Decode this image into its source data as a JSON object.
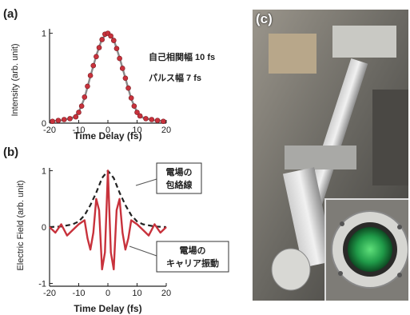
{
  "figure": {
    "panel_a": {
      "label": "(a)",
      "ylabel": "Intensity (arb. unit)",
      "xlabel": "Time Delay (fs)",
      "annotation_line1": "自己相関幅 10 fs",
      "annotation_line2": "パルス幅 7 fs"
    },
    "panel_b": {
      "label": "(b)",
      "ylabel": "Electric Field (arb. unit)",
      "xlabel": "Time Delay (fs)",
      "callout_envelope": [
        "電場の",
        "包絡線"
      ],
      "callout_carrier": [
        "電場の",
        "キャリア振動"
      ]
    },
    "panel_c": {
      "label": "(c)"
    }
  },
  "chart_data": [
    {
      "type": "line",
      "title": "",
      "xlabel": "Time Delay (fs)",
      "ylabel": "Intensity (arb. unit)",
      "xlim": [
        -20,
        20
      ],
      "ylim": [
        0,
        1.05
      ],
      "xticks": [
        "-20",
        "-10",
        "0",
        "10",
        "20"
      ],
      "yticks": [
        "0",
        "1"
      ],
      "series": [
        {
          "style": "markers",
          "color": "#c8323c",
          "x": [
            -19,
            -17,
            -15,
            -13,
            -11,
            -10,
            -9,
            -8,
            -7,
            -6,
            -5,
            -4,
            -3,
            -2,
            -1,
            0,
            1,
            2,
            3,
            4,
            5,
            6,
            7,
            8,
            9,
            10,
            11,
            13,
            15,
            17,
            19
          ],
          "y": [
            0.02,
            0.03,
            0.04,
            0.05,
            0.07,
            0.12,
            0.19,
            0.29,
            0.41,
            0.53,
            0.64,
            0.74,
            0.84,
            0.93,
            0.99,
            1.0,
            0.97,
            0.92,
            0.83,
            0.72,
            0.61,
            0.5,
            0.39,
            0.28,
            0.19,
            0.12,
            0.08,
            0.05,
            0.04,
            0.03,
            0.02
          ]
        },
        {
          "style": "line",
          "color": "#8a8a8a",
          "x": [
            -20,
            -16,
            -12,
            -10,
            -8,
            -6,
            -4,
            -2,
            0,
            2,
            4,
            6,
            8,
            10,
            12,
            16,
            20
          ],
          "y": [
            0.02,
            0.03,
            0.06,
            0.12,
            0.28,
            0.52,
            0.75,
            0.94,
            1.0,
            0.93,
            0.73,
            0.5,
            0.27,
            0.12,
            0.06,
            0.03,
            0.02
          ]
        }
      ]
    },
    {
      "type": "line",
      "title": "",
      "xlabel": "Time Delay (fs)",
      "ylabel": "Electric Field (arb. unit)",
      "xlim": [
        -20,
        20
      ],
      "ylim": [
        -1.05,
        1.05
      ],
      "xticks": [
        "-20",
        "-10",
        "0",
        "10",
        "20"
      ],
      "yticks": [
        "-1",
        "0",
        "1"
      ],
      "series": [
        {
          "style": "dashed",
          "color": "#222222",
          "role": "envelope",
          "x": [
            -20,
            -16,
            -12,
            -10,
            -8,
            -6,
            -4,
            -2,
            0,
            2,
            4,
            6,
            8,
            10,
            12,
            16,
            20
          ],
          "y": [
            0.0,
            0.01,
            0.05,
            0.1,
            0.21,
            0.39,
            0.61,
            0.87,
            1.0,
            0.87,
            0.61,
            0.39,
            0.21,
            0.1,
            0.05,
            0.01,
            0.0
          ]
        },
        {
          "style": "line",
          "color": "#c8323c",
          "role": "carrier",
          "x": [
            -20,
            -18,
            -16,
            -14,
            -12,
            -10,
            -8,
            -7,
            -6,
            -5,
            -4,
            -3,
            -2,
            -1,
            0,
            1,
            2,
            3,
            4,
            5,
            6,
            7,
            8,
            10,
            12,
            14,
            16,
            18,
            20
          ],
          "y": [
            0.0,
            -0.1,
            0.05,
            -0.15,
            -0.05,
            0.05,
            0.12,
            -0.2,
            -0.4,
            -0.1,
            0.5,
            0.3,
            -0.75,
            -0.45,
            1.0,
            -0.45,
            -0.75,
            0.3,
            0.5,
            -0.1,
            -0.4,
            -0.2,
            0.12,
            0.05,
            -0.05,
            -0.15,
            0.05,
            -0.1,
            0.0
          ]
        }
      ]
    }
  ]
}
